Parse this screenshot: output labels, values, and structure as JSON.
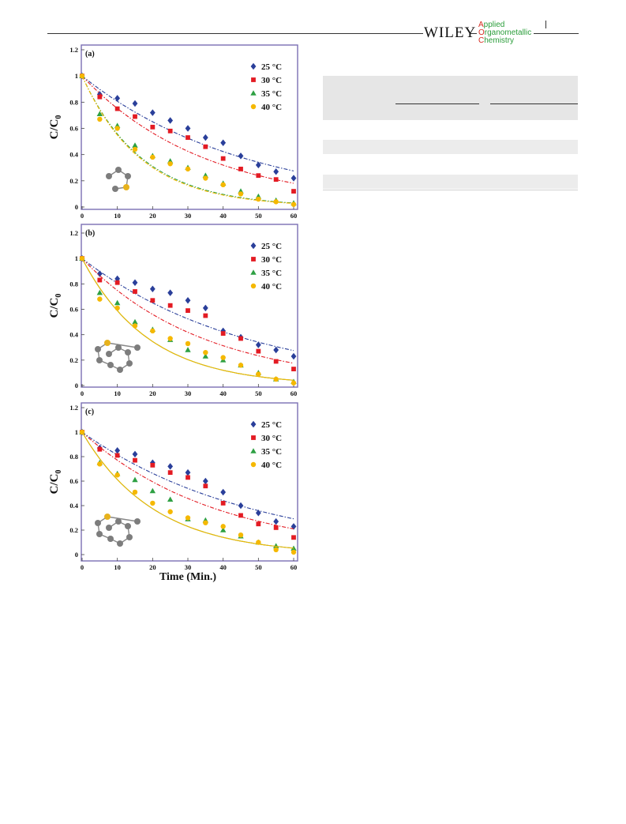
{
  "header": {
    "publisher": "WILEY",
    "journal_lines": [
      {
        "first": "A",
        "rest": "pplied"
      },
      {
        "first": "O",
        "rest": "rganometallic"
      },
      {
        "first": "C",
        "rest": "hemistry"
      }
    ]
  },
  "figure": {
    "y_axis_label": "C/C",
    "y_axis_subscript": "0",
    "x_axis_label": "Time (Min.)"
  },
  "chart_data": [
    {
      "type": "scatter",
      "panel_label": "(a)",
      "xlim": [
        0,
        60
      ],
      "ylim": [
        0,
        1.2
      ],
      "x_ticks": [
        0,
        10,
        20,
        30,
        40,
        50,
        60
      ],
      "y_ticks": [
        0,
        0.2,
        0.4,
        0.6,
        0.8,
        1,
        1.2
      ],
      "legend_position": "top-right",
      "series": [
        {
          "name": "25 °C",
          "color": "#2a3f9a",
          "marker": "diamond",
          "x": [
            0,
            5,
            10,
            15,
            20,
            25,
            30,
            35,
            40,
            45,
            50,
            55,
            60
          ],
          "y": [
            1,
            0.86,
            0.83,
            0.79,
            0.72,
            0.66,
            0.6,
            0.53,
            0.49,
            0.39,
            0.32,
            0.27,
            0.22
          ],
          "fit_k": 0.0215,
          "fit_style": "dashdot"
        },
        {
          "name": "30 °C",
          "color": "#e31b23",
          "marker": "square",
          "x": [
            0,
            5,
            10,
            15,
            20,
            25,
            30,
            35,
            40,
            45,
            50,
            55,
            60
          ],
          "y": [
            1,
            0.84,
            0.75,
            0.69,
            0.61,
            0.58,
            0.53,
            0.46,
            0.37,
            0.29,
            0.24,
            0.21,
            0.12
          ],
          "fit_k": 0.0285,
          "fit_style": "dashdot"
        },
        {
          "name": "35 °C",
          "color": "#2ea043",
          "marker": "triangle",
          "x": [
            0,
            5,
            10,
            15,
            20,
            25,
            30,
            35,
            40,
            45,
            50,
            55,
            60
          ],
          "y": [
            1,
            0.71,
            0.62,
            0.47,
            0.39,
            0.35,
            0.3,
            0.24,
            0.18,
            0.12,
            0.08,
            0.05,
            0.03
          ],
          "fit_k": 0.0585,
          "fit_style": "dashdot"
        },
        {
          "name": "40 °C",
          "color": "#f5b800",
          "marker": "circle",
          "x": [
            0,
            5,
            10,
            15,
            20,
            25,
            30,
            35,
            40,
            45,
            50,
            55,
            60
          ],
          "y": [
            1,
            0.67,
            0.6,
            0.44,
            0.38,
            0.33,
            0.29,
            0.22,
            0.17,
            0.1,
            0.06,
            0.04,
            0.02
          ],
          "fit_k": 0.06,
          "fit_style": "dashdot"
        }
      ]
    },
    {
      "type": "scatter",
      "panel_label": "(b)",
      "xlim": [
        0,
        60
      ],
      "ylim": [
        0,
        1.2
      ],
      "x_ticks": [
        0,
        10,
        20,
        30,
        40,
        50,
        60
      ],
      "y_ticks": [
        0,
        0.2,
        0.4,
        0.6,
        0.8,
        1,
        1.2
      ],
      "legend_position": "top-right",
      "series": [
        {
          "name": "25 °C",
          "color": "#2a3f9a",
          "marker": "diamond",
          "x": [
            0,
            5,
            10,
            15,
            20,
            25,
            30,
            35,
            40,
            45,
            50,
            55,
            60
          ],
          "y": [
            1,
            0.88,
            0.84,
            0.81,
            0.76,
            0.73,
            0.67,
            0.61,
            0.43,
            0.38,
            0.32,
            0.28,
            0.23
          ],
          "fit_k": 0.0215,
          "fit_style": "dashdot"
        },
        {
          "name": "30 °C",
          "color": "#e31b23",
          "marker": "square",
          "x": [
            0,
            5,
            10,
            15,
            20,
            25,
            30,
            35,
            40,
            45,
            50,
            55,
            60
          ],
          "y": [
            1,
            0.83,
            0.81,
            0.74,
            0.67,
            0.63,
            0.59,
            0.55,
            0.41,
            0.37,
            0.27,
            0.19,
            0.13
          ],
          "fit_k": 0.029,
          "fit_style": "dashdot"
        },
        {
          "name": "35 °C",
          "color": "#2ea043",
          "marker": "triangle",
          "x": [
            0,
            5,
            10,
            15,
            20,
            25,
            30,
            35,
            40,
            45,
            50,
            55,
            60
          ],
          "y": [
            1,
            0.73,
            0.65,
            0.5,
            0.44,
            0.36,
            0.28,
            0.23,
            0.2,
            0.16,
            0.1,
            0.05,
            0.03
          ],
          "fit_k": 0.053,
          "fit_style": "solid"
        },
        {
          "name": "40 °C",
          "color": "#f5b800",
          "marker": "circle",
          "x": [
            0,
            5,
            10,
            15,
            20,
            25,
            30,
            35,
            40,
            45,
            50,
            55,
            60
          ],
          "y": [
            1,
            0.68,
            0.61,
            0.47,
            0.43,
            0.37,
            0.33,
            0.26,
            0.22,
            0.16,
            0.09,
            0.05,
            0.02
          ],
          "fit_k": 0.053,
          "fit_style": "solid"
        }
      ]
    },
    {
      "type": "scatter",
      "panel_label": "(c)",
      "xlim": [
        0,
        60
      ],
      "ylim": [
        0,
        1.2
      ],
      "x_ticks": [
        0,
        10,
        20,
        30,
        40,
        50,
        60
      ],
      "y_ticks": [
        0,
        0.2,
        0.4,
        0.6,
        0.8,
        1,
        1.2
      ],
      "legend_position": "top-right",
      "series": [
        {
          "name": "25 °C",
          "color": "#2a3f9a",
          "marker": "diamond",
          "x": [
            0,
            5,
            10,
            15,
            20,
            25,
            30,
            35,
            40,
            45,
            50,
            55,
            60
          ],
          "y": [
            1,
            0.87,
            0.85,
            0.82,
            0.75,
            0.72,
            0.67,
            0.6,
            0.51,
            0.4,
            0.34,
            0.27,
            0.23
          ],
          "fit_k": 0.0205,
          "fit_style": "dashdot"
        },
        {
          "name": "30 °C",
          "color": "#e31b23",
          "marker": "square",
          "x": [
            0,
            5,
            10,
            15,
            20,
            25,
            30,
            35,
            40,
            45,
            50,
            55,
            60
          ],
          "y": [
            1,
            0.86,
            0.81,
            0.77,
            0.73,
            0.67,
            0.63,
            0.56,
            0.42,
            0.32,
            0.25,
            0.22,
            0.14
          ],
          "fit_k": 0.026,
          "fit_style": "dashdot"
        },
        {
          "name": "35 °C",
          "color": "#2ea043",
          "marker": "triangle",
          "x": [
            0,
            5,
            10,
            15,
            20,
            25,
            30,
            35,
            40,
            45,
            50,
            55,
            60
          ],
          "y": [
            1,
            0.75,
            0.66,
            0.61,
            0.52,
            0.45,
            0.29,
            0.28,
            0.2,
            0.15,
            0.1,
            0.07,
            0.05
          ],
          "fit_k": 0.049,
          "fit_style": "solid"
        },
        {
          "name": "40 °C",
          "color": "#f5b800",
          "marker": "circle",
          "x": [
            0,
            5,
            10,
            15,
            20,
            25,
            30,
            35,
            40,
            45,
            50,
            55,
            60
          ],
          "y": [
            1,
            0.74,
            0.65,
            0.51,
            0.42,
            0.35,
            0.3,
            0.26,
            0.23,
            0.16,
            0.1,
            0.04,
            0.02
          ],
          "fit_k": 0.049,
          "fit_style": "solid"
        }
      ]
    }
  ]
}
